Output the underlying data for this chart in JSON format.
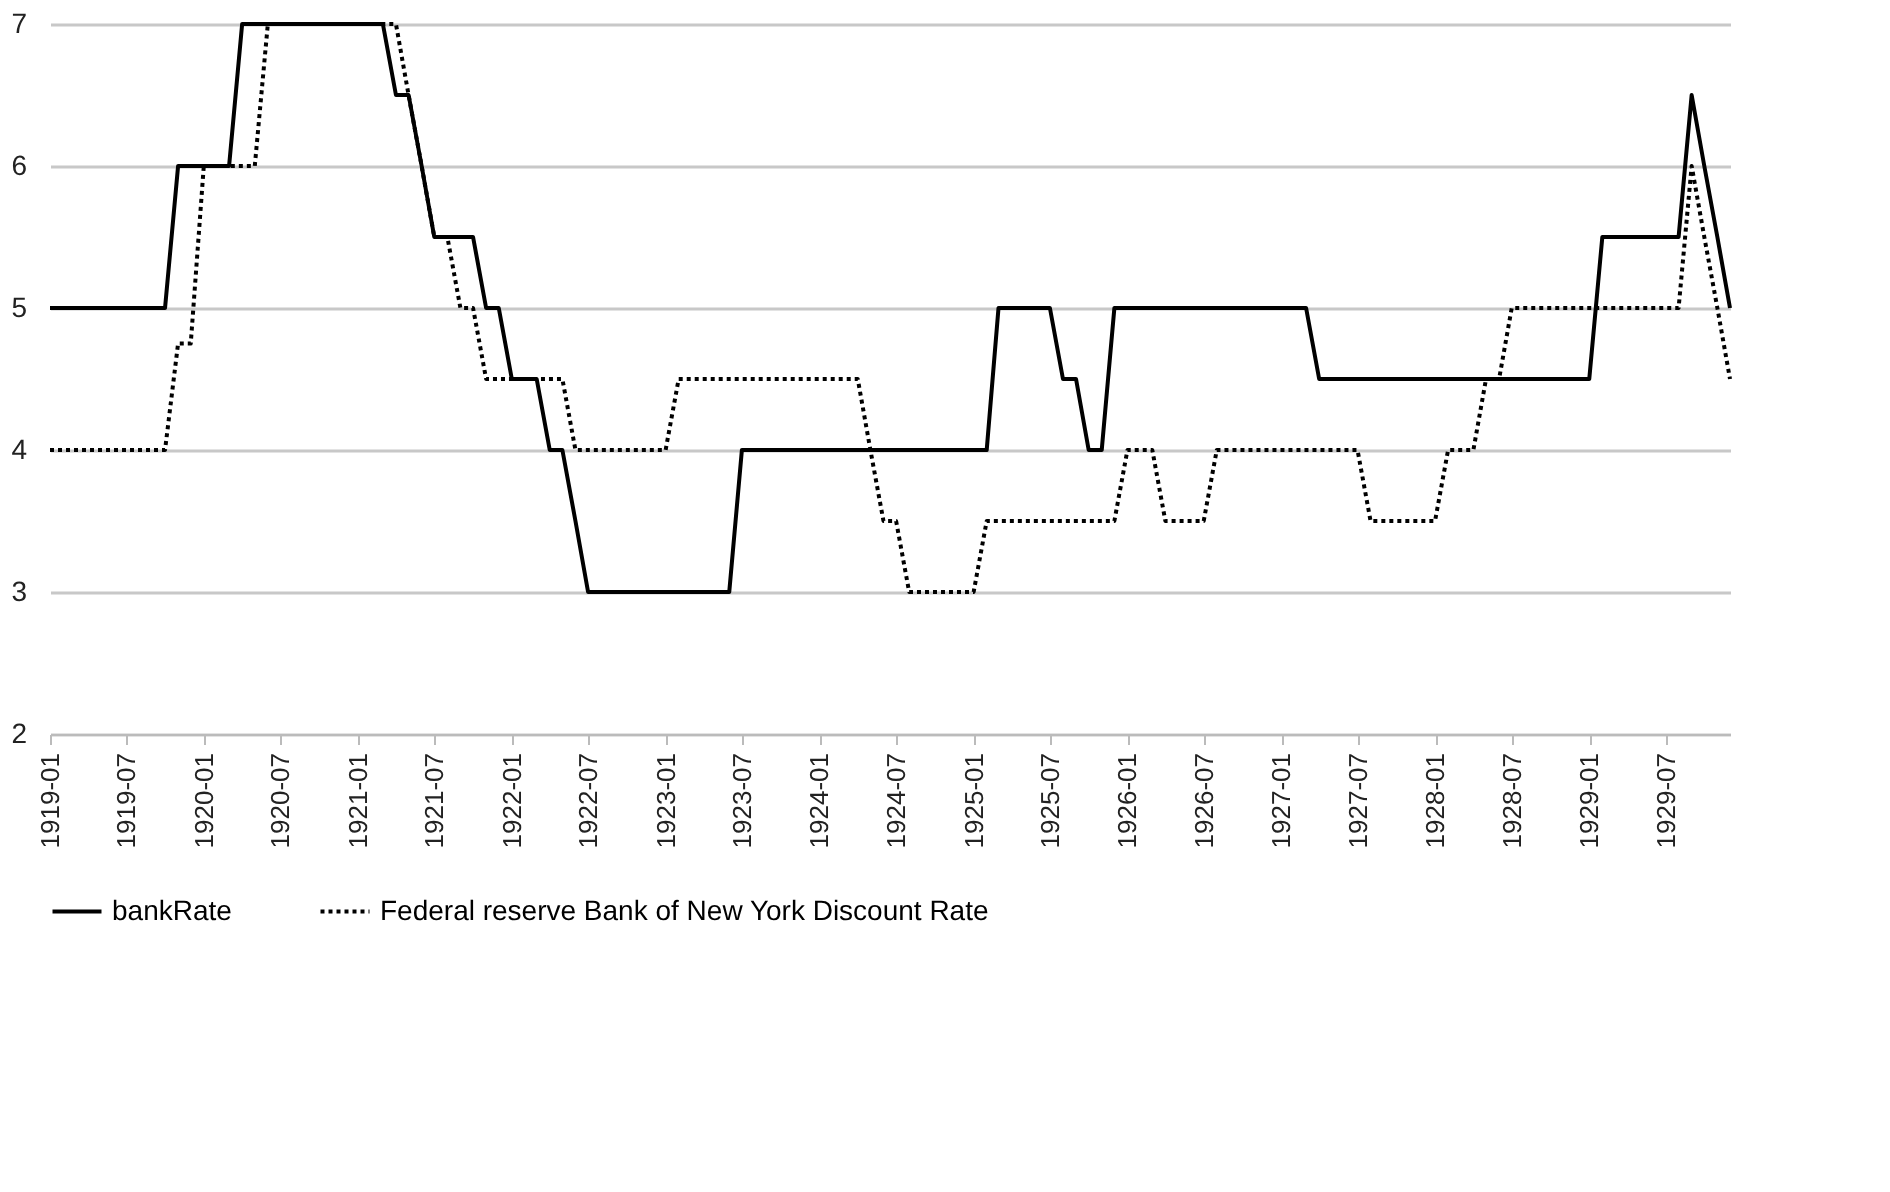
{
  "chart_data": {
    "type": "line",
    "x": [
      "1919-01",
      "1919-02",
      "1919-03",
      "1919-04",
      "1919-05",
      "1919-06",
      "1919-07",
      "1919-08",
      "1919-09",
      "1919-10",
      "1919-11",
      "1919-12",
      "1920-01",
      "1920-02",
      "1920-03",
      "1920-04",
      "1920-05",
      "1920-06",
      "1920-07",
      "1920-08",
      "1920-09",
      "1920-10",
      "1920-11",
      "1920-12",
      "1921-01",
      "1921-02",
      "1921-03",
      "1921-04",
      "1921-05",
      "1921-06",
      "1921-07",
      "1921-08",
      "1921-09",
      "1921-10",
      "1921-11",
      "1921-12",
      "1922-01",
      "1922-02",
      "1922-03",
      "1922-04",
      "1922-05",
      "1922-06",
      "1922-07",
      "1922-08",
      "1922-09",
      "1922-10",
      "1922-11",
      "1922-12",
      "1923-01",
      "1923-02",
      "1923-03",
      "1923-04",
      "1923-05",
      "1923-06",
      "1923-07",
      "1923-08",
      "1923-09",
      "1923-10",
      "1923-11",
      "1923-12",
      "1924-01",
      "1924-02",
      "1924-03",
      "1924-04",
      "1924-05",
      "1924-06",
      "1924-07",
      "1924-08",
      "1924-09",
      "1924-10",
      "1924-11",
      "1924-12",
      "1925-01",
      "1925-02",
      "1925-03",
      "1925-04",
      "1925-05",
      "1925-06",
      "1925-07",
      "1925-08",
      "1925-09",
      "1925-10",
      "1925-11",
      "1925-12",
      "1926-01",
      "1926-02",
      "1926-03",
      "1926-04",
      "1926-05",
      "1926-06",
      "1926-07",
      "1926-08",
      "1926-09",
      "1926-10",
      "1926-11",
      "1926-12",
      "1927-01",
      "1927-02",
      "1927-03",
      "1927-04",
      "1927-05",
      "1927-06",
      "1927-07",
      "1927-08",
      "1927-09",
      "1927-10",
      "1927-11",
      "1927-12",
      "1928-01",
      "1928-02",
      "1928-03",
      "1928-04",
      "1928-05",
      "1928-06",
      "1928-07",
      "1928-08",
      "1928-09",
      "1928-10",
      "1928-11",
      "1928-12",
      "1929-01",
      "1929-02",
      "1929-03",
      "1929-04",
      "1929-05",
      "1929-06",
      "1929-07",
      "1929-08",
      "1929-09",
      "1929-10",
      "1929-11",
      "1929-12"
    ],
    "series": [
      {
        "name": "bankRate",
        "color": "#000000",
        "line_style": "solid",
        "values": [
          5,
          5,
          5,
          5,
          5,
          5,
          5,
          5,
          5,
          5,
          6,
          6,
          6,
          6,
          6,
          7,
          7,
          7,
          7,
          7,
          7,
          7,
          7,
          7,
          7,
          7,
          7,
          6.5,
          6.5,
          6,
          5.5,
          5.5,
          5.5,
          5.5,
          5,
          5,
          4.5,
          4.5,
          4.5,
          4,
          4,
          3.5,
          3,
          3,
          3,
          3,
          3,
          3,
          3,
          3,
          3,
          3,
          3,
          3,
          4,
          4,
          4,
          4,
          4,
          4,
          4,
          4,
          4,
          4,
          4,
          4,
          4,
          4,
          4,
          4,
          4,
          4,
          4,
          4,
          5,
          5,
          5,
          5,
          5,
          4.5,
          4.5,
          4,
          4,
          5,
          5,
          5,
          5,
          5,
          5,
          5,
          5,
          5,
          5,
          5,
          5,
          5,
          5,
          5,
          5,
          4.5,
          4.5,
          4.5,
          4.5,
          4.5,
          4.5,
          4.5,
          4.5,
          4.5,
          4.5,
          4.5,
          4.5,
          4.5,
          4.5,
          4.5,
          4.5,
          4.5,
          4.5,
          4.5,
          4.5,
          4.5,
          4.5,
          5.5,
          5.5,
          5.5,
          5.5,
          5.5,
          5.5,
          5.5,
          6.5,
          6,
          5.5,
          5
        ]
      },
      {
        "name": "Federal reserve Bank of New York  Discount Rate",
        "color": "#000000",
        "line_style": "dotted",
        "values": [
          4,
          4,
          4,
          4,
          4,
          4,
          4,
          4,
          4,
          4,
          4.75,
          4.75,
          6,
          6,
          6,
          6,
          6,
          7,
          7,
          7,
          7,
          7,
          7,
          7,
          7,
          7,
          7,
          7,
          6.5,
          6,
          5.5,
          5.5,
          5,
          5,
          4.5,
          4.5,
          4.5,
          4.5,
          4.5,
          4.5,
          4.5,
          4,
          4,
          4,
          4,
          4,
          4,
          4,
          4,
          4.5,
          4.5,
          4.5,
          4.5,
          4.5,
          4.5,
          4.5,
          4.5,
          4.5,
          4.5,
          4.5,
          4.5,
          4.5,
          4.5,
          4.5,
          4,
          3.5,
          3.5,
          3,
          3,
          3,
          3,
          3,
          3,
          3.5,
          3.5,
          3.5,
          3.5,
          3.5,
          3.5,
          3.5,
          3.5,
          3.5,
          3.5,
          3.5,
          4,
          4,
          4,
          3.5,
          3.5,
          3.5,
          3.5,
          4,
          4,
          4,
          4,
          4,
          4,
          4,
          4,
          4,
          4,
          4,
          4,
          3.5,
          3.5,
          3.5,
          3.5,
          3.5,
          3.5,
          4,
          4,
          4,
          4.5,
          4.5,
          5,
          5,
          5,
          5,
          5,
          5,
          5,
          5,
          5,
          5,
          5,
          5,
          5,
          5,
          6,
          5.5,
          5,
          4.5
        ]
      }
    ],
    "xlim": [
      "1919-01",
      "1929-12"
    ],
    "xticks": [
      "1919-01",
      "1919-07",
      "1920-01",
      "1920-07",
      "1921-01",
      "1921-07",
      "1922-01",
      "1922-07",
      "1923-01",
      "1923-07",
      "1924-01",
      "1924-07",
      "1925-01",
      "1925-07",
      "1926-01",
      "1926-07",
      "1927-01",
      "1927-07",
      "1928-01",
      "1928-07",
      "1929-01",
      "1929-07"
    ],
    "ylim": [
      2,
      7
    ],
    "yticks": [
      2,
      3,
      4,
      5,
      6,
      7
    ],
    "grid": "y",
    "legend": "bottom"
  }
}
